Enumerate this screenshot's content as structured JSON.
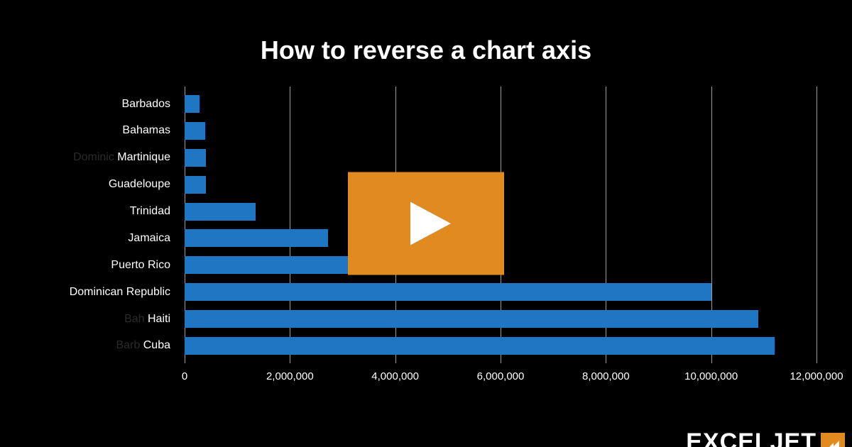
{
  "title": "How to reverse a chart axis",
  "chart": {
    "type": "bar",
    "orientation": "horizontal",
    "background_color": "#000000",
    "bar_color": "#1f77c4",
    "grid_color": "#9e9e9e",
    "text_color": "#ffffff",
    "title_fontsize": 36,
    "label_fontsize": 16,
    "xlim": [
      0,
      12000000
    ],
    "xtick_step": 2000000,
    "xticks": [
      {
        "value": 0,
        "label": "0"
      },
      {
        "value": 2000000,
        "label": "2,000,000"
      },
      {
        "value": 4000000,
        "label": "4,000,000"
      },
      {
        "value": 6000000,
        "label": "6,000,000"
      },
      {
        "value": 8000000,
        "label": "8,000,000"
      },
      {
        "value": 10000000,
        "label": "10,000,000"
      },
      {
        "value": 12000000,
        "label": "12,000,000"
      }
    ],
    "categories": [
      {
        "label": "Barbados",
        "value": 285000
      },
      {
        "label": "Bahamas",
        "value": 390000
      },
      {
        "label": "Martinique",
        "value": 400000,
        "ghost_prefix": "Dominic"
      },
      {
        "label": "Guadeloupe",
        "value": 410000
      },
      {
        "label": "Trinidad",
        "value": 1350000
      },
      {
        "label": "Jamaica",
        "value": 2730000
      },
      {
        "label": "Puerto Rico",
        "value": 3400000
      },
      {
        "label": "Dominican Republic",
        "value": 10000000
      },
      {
        "label": "Haiti",
        "value": 10900000,
        "ghost_prefix": "Bah"
      },
      {
        "label": "Cuba",
        "value": 11200000,
        "ghost_prefix": "Barb"
      }
    ]
  },
  "play_button": {
    "bg_color": "#e08a1f",
    "icon_color": "#ffffff"
  },
  "brand": {
    "text": "EXCELJET",
    "accent_bg": "#e08a1f",
    "accent_fg": "#ffffff"
  }
}
